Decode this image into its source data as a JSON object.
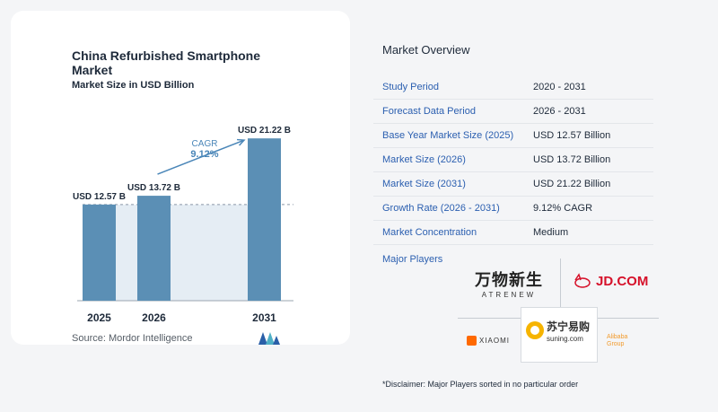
{
  "chart_data": {
    "type": "bar",
    "title": "China Refurbished Smartphone Market",
    "subtitle": "Market Size in USD Billion",
    "categories": [
      "2025",
      "2026",
      "2031"
    ],
    "values": [
      12.57,
      13.72,
      21.22
    ],
    "value_labels": [
      "USD 12.57 B",
      "USD 13.72 B",
      "USD 21.22 B"
    ],
    "cagr_label": "CAGR",
    "cagr_value": "9.12%",
    "ylim": [
      0,
      23
    ],
    "bar_color": "#5b8fb5",
    "bar_color_light": "#cfdeeb",
    "arrow_color": "#4a86b8",
    "grid": false
  },
  "source": "Source:  Mordor Intelligence",
  "overview": {
    "title": "Market Overview",
    "rows": [
      {
        "label": "Study Period",
        "value": "2020 - 2031"
      },
      {
        "label": "Forecast Data Period",
        "value": "2026 - 2031"
      },
      {
        "label": "Base Year Market Size (2025)",
        "value": "USD 12.57 Billion"
      },
      {
        "label": "Market Size (2026)",
        "value": "USD 13.72 Billion"
      },
      {
        "label": "Market Size (2031)",
        "value": "USD 21.22 Billion"
      },
      {
        "label": "Growth Rate (2026 - 2031)",
        "value": "9.12% CAGR"
      },
      {
        "label": "Market Concentration",
        "value": "Medium"
      }
    ]
  },
  "players": {
    "title": "Major Players",
    "atrenew_cn": "万物新生",
    "atrenew_en": "ATRENEW",
    "jd": "JD.COM",
    "xiaomi": "XIAOMI",
    "suning_cn": "苏宁易购",
    "suning_en": "suning.com",
    "alibaba_line1": "Alibaba",
    "alibaba_line2": "Group"
  },
  "disclaimer": "*Disclaimer: Major Players sorted in no particular order"
}
